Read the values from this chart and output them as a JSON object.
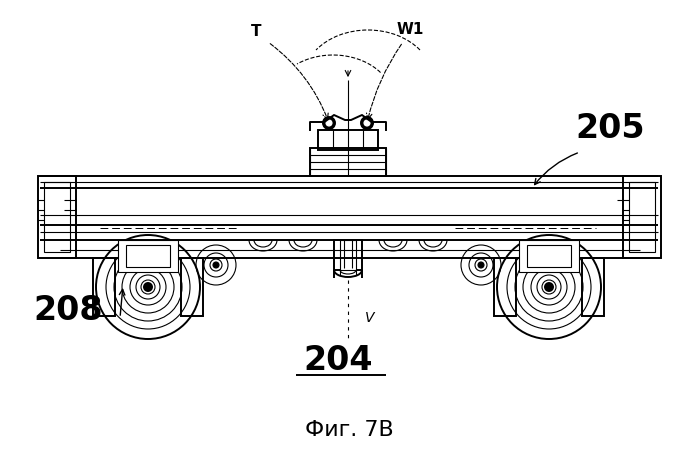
{
  "bg_color": "#ffffff",
  "line_color": "#000000",
  "title_text": "Фиг. 7B",
  "label_204": "204",
  "label_205": "205",
  "label_208": "208",
  "label_T": "T",
  "label_W1": "W1",
  "label_V": "V",
  "fig_width": 6.99,
  "fig_height": 4.76,
  "dpi": 100
}
